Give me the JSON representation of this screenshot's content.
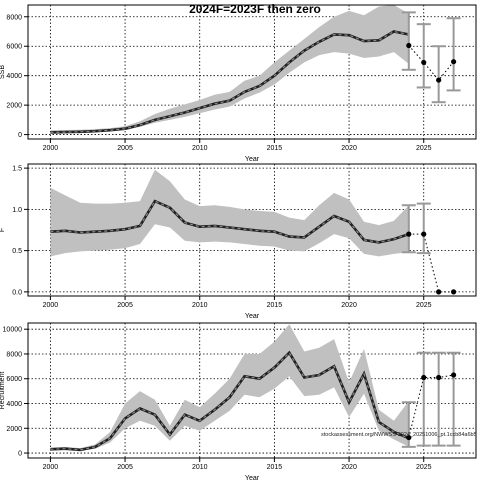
{
  "title": "2024F=2023F then zero",
  "watermark": "stockassessment.org/NWWSS-2024_20251006_pt.1ccb84a6b5",
  "colors": {
    "band": "#c0c0c0",
    "line": "#202020",
    "whisker": "#999999",
    "point": "#000000"
  },
  "chart_data": [
    {
      "type": "line",
      "xlabel": "Year",
      "ylabel": "SSB",
      "xlim": [
        1998.5,
        2028.5
      ],
      "ylim": [
        -300,
        8800
      ],
      "xticks": [
        2000,
        2005,
        2010,
        2015,
        2020,
        2025
      ],
      "yticks": [
        0,
        2000,
        4000,
        6000,
        8000
      ],
      "grid": true,
      "x": [
        2000,
        2001,
        2002,
        2003,
        2004,
        2005,
        2006,
        2007,
        2008,
        2009,
        2010,
        2011,
        2012,
        2013,
        2014,
        2015,
        2016,
        2017,
        2018,
        2019,
        2020,
        2021,
        2022,
        2023,
        2024
      ],
      "estimate": [
        150,
        170,
        190,
        230,
        300,
        400,
        650,
        1000,
        1250,
        1500,
        1800,
        2100,
        2300,
        2900,
        3300,
        4000,
        4900,
        5700,
        6300,
        6800,
        6750,
        6350,
        6400,
        7000,
        6800
      ],
      "lower": [
        100,
        120,
        140,
        170,
        220,
        310,
        520,
        800,
        1000,
        1200,
        1450,
        1700,
        1900,
        2450,
        2850,
        3400,
        4200,
        4900,
        5400,
        5600,
        5500,
        5200,
        5300,
        5600,
        4800
      ],
      "upper": [
        300,
        310,
        330,
        370,
        440,
        560,
        900,
        1400,
        1750,
        2050,
        2350,
        2700,
        2900,
        3650,
        4000,
        4900,
        5700,
        6500,
        7300,
        8000,
        8400,
        8100,
        8700,
        8800,
        8200
      ],
      "projections": [
        {
          "x": 2024,
          "value": 6050,
          "low": 4400,
          "high": 8300
        },
        {
          "x": 2025,
          "value": 4900,
          "low": 3200,
          "high": 7500
        },
        {
          "x": 2026,
          "value": 3700,
          "low": 2200,
          "high": 6000
        },
        {
          "x": 2027,
          "value": 4950,
          "low": 3000,
          "high": 7900
        }
      ]
    },
    {
      "type": "line",
      "xlabel": "Year",
      "ylabel": "F",
      "xlim": [
        1998.5,
        2028.5
      ],
      "ylim": [
        -0.05,
        1.55
      ],
      "xticks": [
        2000,
        2005,
        2010,
        2015,
        2020,
        2025
      ],
      "yticks": [
        0.0,
        0.5,
        1.0,
        1.5
      ],
      "grid": true,
      "x": [
        2000,
        2001,
        2002,
        2003,
        2004,
        2005,
        2006,
        2007,
        2008,
        2009,
        2010,
        2011,
        2012,
        2013,
        2014,
        2015,
        2016,
        2017,
        2018,
        2019,
        2020,
        2021,
        2022,
        2023,
        2024
      ],
      "estimate": [
        0.73,
        0.74,
        0.72,
        0.73,
        0.74,
        0.76,
        0.8,
        1.1,
        1.02,
        0.84,
        0.79,
        0.8,
        0.78,
        0.76,
        0.74,
        0.73,
        0.67,
        0.66,
        0.79,
        0.92,
        0.85,
        0.63,
        0.6,
        0.64,
        0.7
      ],
      "lower": [
        0.43,
        0.47,
        0.49,
        0.5,
        0.51,
        0.53,
        0.58,
        0.82,
        0.78,
        0.62,
        0.6,
        0.61,
        0.6,
        0.58,
        0.56,
        0.55,
        0.5,
        0.49,
        0.59,
        0.7,
        0.65,
        0.46,
        0.43,
        0.46,
        0.48
      ],
      "upper": [
        1.26,
        1.17,
        1.08,
        1.07,
        1.07,
        1.08,
        1.1,
        1.48,
        1.34,
        1.12,
        1.04,
        1.05,
        1.03,
        1.0,
        0.98,
        0.97,
        0.9,
        0.87,
        1.05,
        1.2,
        1.12,
        0.85,
        0.81,
        0.86,
        1.05
      ],
      "projections": [
        {
          "x": 2024,
          "value": 0.7,
          "low": 0.48,
          "high": 1.05
        },
        {
          "x": 2025,
          "value": 0.7,
          "low": 0.47,
          "high": 1.07
        },
        {
          "x": 2026,
          "value": 0.0,
          "low": 0.0,
          "high": 0.0
        },
        {
          "x": 2027,
          "value": 0.0,
          "low": 0.0,
          "high": 0.0
        }
      ]
    },
    {
      "type": "line",
      "xlabel": "Year",
      "ylabel": "Recruitment",
      "xlim": [
        1998.5,
        2028.5
      ],
      "ylim": [
        -400,
        10500
      ],
      "xticks": [
        2000,
        2005,
        2010,
        2015,
        2020,
        2025
      ],
      "yticks": [
        0,
        2000,
        4000,
        6000,
        8000,
        10000
      ],
      "grid": true,
      "x": [
        2000,
        2001,
        2002,
        2003,
        2004,
        2005,
        2006,
        2007,
        2008,
        2009,
        2010,
        2011,
        2012,
        2013,
        2014,
        2015,
        2016,
        2017,
        2018,
        2019,
        2020,
        2021,
        2022,
        2023,
        2024
      ],
      "estimate": [
        300,
        350,
        250,
        500,
        1200,
        2800,
        3600,
        3100,
        1500,
        3100,
        2600,
        3500,
        4500,
        6200,
        6000,
        6900,
        8100,
        6100,
        6300,
        7000,
        4100,
        6400,
        2500,
        1700,
        1200
      ],
      "lower": [
        200,
        250,
        180,
        350,
        850,
        2000,
        2600,
        2200,
        1000,
        2200,
        1800,
        2600,
        3400,
        4700,
        4500,
        5200,
        6200,
        4600,
        4700,
        5300,
        2900,
        4800,
        1800,
        1100,
        500
      ],
      "upper": [
        450,
        500,
        400,
        700,
        1700,
        4000,
        5000,
        4300,
        2200,
        4300,
        3700,
        4800,
        6000,
        8000,
        8000,
        9000,
        10400,
        8200,
        8500,
        9200,
        5700,
        8400,
        3500,
        2600,
        4200
      ],
      "projections": [
        {
          "x": 2024,
          "value": 1250,
          "low": 500,
          "high": 4100
        },
        {
          "x": 2025,
          "value": 6100,
          "low": 600,
          "high": 8100
        },
        {
          "x": 2026,
          "value": 6100,
          "low": 600,
          "high": 8100
        },
        {
          "x": 2027,
          "value": 6300,
          "low": 600,
          "high": 8100
        }
      ]
    }
  ]
}
